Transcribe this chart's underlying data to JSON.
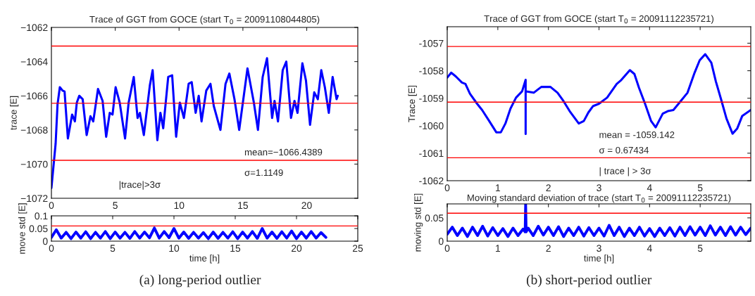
{
  "chart_data": [
    {
      "type": "line",
      "title": "Trace of GGT from GOCE (start T$_{0}$ = 20091108044805)",
      "ylabel": "trace [E]",
      "xlim": [
        0,
        24
      ],
      "xticks": [
        0,
        5,
        10,
        15,
        20
      ],
      "ylim": [
        -1072,
        -1062
      ],
      "yticks": [
        {
          "value": -1072,
          "label": "−1072"
        },
        {
          "value": -1070,
          "label": "−1070"
        },
        {
          "value": -1068,
          "label": "−1068"
        },
        {
          "value": -1066,
          "label": "−1066"
        },
        {
          "value": -1064,
          "label": "−1064"
        },
        {
          "value": -1062,
          "label": "−1062"
        }
      ],
      "grid": false,
      "legend": false,
      "series": [
        {
          "color": "#0000ff",
          "x": [
            0,
            0.33,
            0.48,
            0.66,
            0.88,
            1.03,
            1.29,
            1.62,
            1.84,
            1.99,
            2.18,
            2.45,
            2.76,
            3.06,
            3.28,
            3.65,
            4.01,
            4.29,
            4.57,
            4.79,
            5.03,
            5.35,
            5.77,
            6.05,
            6.45,
            6.75,
            6.93,
            7.24,
            7.71,
            7.93,
            8.3,
            8.54,
            8.76,
            9.15,
            9.46,
            9.77,
            10.06,
            10.38,
            10.75,
            10.99,
            11.3,
            11.54,
            11.76,
            12.13,
            12.46,
            12.72,
            13.24,
            13.64,
            13.94,
            14.34,
            14.71,
            15.36,
            15.86,
            16.18,
            16.55,
            16.89,
            17.29,
            17.48,
            17.75,
            18.12,
            18.4,
            18.77,
            19.04,
            19.28,
            19.66,
            19.94,
            20.26,
            20.59,
            20.87,
            21.14,
            21.42,
            21.73,
            22.03,
            22.34,
            22.43
          ],
          "values": [
            -1071.4,
            -1068.8,
            -1066.5,
            -1065.5,
            -1065.7,
            -1065.75,
            -1068.5,
            -1067.1,
            -1067.5,
            -1066.4,
            -1066.0,
            -1066.2,
            -1068.3,
            -1067.2,
            -1067.5,
            -1065.6,
            -1066.3,
            -1068.4,
            -1067.0,
            -1067.1,
            -1065.5,
            -1066.4,
            -1068.5,
            -1066.4,
            -1064.9,
            -1067.3,
            -1067.0,
            -1068.3,
            -1065.4,
            -1064.5,
            -1068.6,
            -1067.0,
            -1067.9,
            -1064.9,
            -1064.8,
            -1068.4,
            -1066.4,
            -1067.3,
            -1065.3,
            -1065.2,
            -1067.0,
            -1066.0,
            -1067.5,
            -1065.7,
            -1065.3,
            -1066.6,
            -1068.0,
            -1065.3,
            -1064.7,
            -1066.2,
            -1068.0,
            -1064.4,
            -1066.4,
            -1068.0,
            -1064.9,
            -1063.8,
            -1067.3,
            -1066.3,
            -1067.5,
            -1064.5,
            -1064.0,
            -1067.3,
            -1066.3,
            -1067.0,
            -1064.1,
            -1065.1,
            -1067.7,
            -1065.8,
            -1066.2,
            -1064.5,
            -1065.5,
            -1067.0,
            -1064.9,
            -1066.2,
            -1066.0
          ]
        }
      ],
      "ref_lines": [
        {
          "axis": "y",
          "value": -1063.09,
          "color": "#ff0000"
        },
        {
          "axis": "y",
          "value": -1066.4389,
          "color": "#ff0000"
        },
        {
          "axis": "y",
          "value": -1069.78,
          "color": "#ff0000"
        }
      ],
      "annotations": [
        "mean=−1066.4389",
        "σ=1.1149",
        "|trace|>3σ"
      ]
    },
    {
      "type": "line",
      "xlabel": "time [h]",
      "ylabel": "move std [E]",
      "xlim": [
        0,
        25
      ],
      "xticks": [
        0,
        5,
        10,
        15,
        20,
        25
      ],
      "ylim": [
        0,
        0.1
      ],
      "yticks": [
        0,
        0.05,
        0.1
      ],
      "grid": false,
      "legend": false,
      "series": [
        {
          "color": "#0000ff",
          "x": [
            0,
            0.4,
            0.8,
            1.2,
            1.6,
            2.0,
            2.4,
            2.8,
            3.2,
            3.6,
            4.0,
            4.4,
            4.8,
            5.2,
            5.6,
            6.0,
            6.4,
            6.8,
            7.2,
            7.6,
            8.0,
            8.4,
            8.8,
            9.2,
            9.6,
            10.0,
            10.4,
            10.8,
            11.2,
            11.6,
            12.0,
            12.4,
            12.8,
            13.2,
            13.6,
            14.0,
            14.4,
            14.8,
            15.2,
            15.6,
            16.0,
            16.4,
            16.8,
            17.2,
            17.6,
            18.0,
            18.4,
            18.8,
            19.2,
            19.6,
            20.0,
            20.4,
            20.8,
            21.2,
            21.6,
            22.0,
            22.4
          ],
          "values": [
            0.015,
            0.045,
            0.012,
            0.035,
            0.01,
            0.036,
            0.012,
            0.037,
            0.01,
            0.035,
            0.012,
            0.038,
            0.01,
            0.036,
            0.012,
            0.035,
            0.011,
            0.038,
            0.012,
            0.036,
            0.013,
            0.052,
            0.012,
            0.038,
            0.014,
            0.05,
            0.012,
            0.036,
            0.011,
            0.035,
            0.012,
            0.034,
            0.01,
            0.036,
            0.011,
            0.035,
            0.012,
            0.037,
            0.01,
            0.036,
            0.012,
            0.038,
            0.011,
            0.05,
            0.012,
            0.036,
            0.011,
            0.037,
            0.012,
            0.04,
            0.01,
            0.036,
            0.012,
            0.038,
            0.012,
            0.034,
            0.015
          ]
        }
      ],
      "ref_lines": [
        {
          "axis": "y",
          "value": 0.06,
          "color": "#ff0000"
        }
      ],
      "annotations": [
        "(a) long-period outlier"
      ]
    },
    {
      "type": "line",
      "title": "Trace of GGT from GOCE (start T$_{0}$ = 20091112235721)",
      "ylabel": "Trace [E]",
      "xlim": [
        0,
        6
      ],
      "xticks": [
        0,
        1,
        2,
        3,
        4,
        5
      ],
      "ylim": [
        -1062,
        -1056.4
      ],
      "yticks": [
        {
          "value": -1062,
          "label": "-1062"
        },
        {
          "value": -1061,
          "label": "-1061"
        },
        {
          "value": -1060,
          "label": "-1060"
        },
        {
          "value": -1059,
          "label": "-1059"
        },
        {
          "value": -1058,
          "label": "-1058"
        },
        {
          "value": -1057,
          "label": "-1057"
        }
      ],
      "grid": false,
      "legend": false,
      "series": [
        {
          "color": "#0000ff",
          "x": [
            0,
            0.08,
            0.17,
            0.29,
            0.36,
            0.45,
            0.59,
            0.69,
            0.83,
            0.97,
            1.06,
            1.15,
            1.25,
            1.36,
            1.48,
            1.55,
            1.55,
            1.55,
            1.56,
            1.71,
            1.86,
            2.04,
            2.18,
            2.3,
            2.42,
            2.6,
            2.7,
            2.79,
            2.88,
            3.0,
            3.16,
            3.35,
            3.44,
            3.61,
            3.7,
            3.79,
            3.91,
            4.03,
            4.12,
            4.26,
            4.36,
            4.47,
            4.59,
            4.75,
            4.89,
            4.99,
            5.1,
            5.22,
            5.31,
            5.41,
            5.52,
            5.64,
            5.73,
            5.83,
            6.0
          ],
          "values": [
            -1058.25,
            -1058.07,
            -1058.21,
            -1058.43,
            -1058.48,
            -1058.84,
            -1059.2,
            -1059.43,
            -1059.83,
            -1060.24,
            -1060.24,
            -1059.92,
            -1059.38,
            -1058.98,
            -1058.75,
            -1058.33,
            -1060.3,
            -1058.73,
            -1058.75,
            -1058.8,
            -1058.59,
            -1058.59,
            -1058.8,
            -1059.11,
            -1059.47,
            -1059.92,
            -1059.83,
            -1059.52,
            -1059.29,
            -1059.2,
            -1058.98,
            -1058.48,
            -1058.34,
            -1057.98,
            -1058.12,
            -1058.62,
            -1059.2,
            -1059.83,
            -1060.06,
            -1059.56,
            -1059.47,
            -1059.43,
            -1059.16,
            -1058.8,
            -1058.07,
            -1057.62,
            -1057.4,
            -1057.71,
            -1058.39,
            -1059.02,
            -1059.74,
            -1060.29,
            -1060.11,
            -1059.65,
            -1059.43
          ]
        }
      ],
      "ref_lines": [
        {
          "axis": "y",
          "value": -1057.12,
          "color": "#ff0000"
        },
        {
          "axis": "y",
          "value": -1059.142,
          "color": "#ff0000"
        },
        {
          "axis": "y",
          "value": -1061.165,
          "color": "#ff0000"
        }
      ],
      "annotations": [
        "mean = -1059.142",
        "σ = 0.67434",
        "| trace | > 3σ"
      ]
    },
    {
      "type": "line",
      "title": "Moving standard deviation of trace (start T$_{0}$ = 20091112235721)",
      "xlabel": "time [h]",
      "ylabel": "moving std [E]",
      "xlim": [
        0,
        6
      ],
      "xticks": [
        0,
        1,
        2,
        3,
        4,
        5
      ],
      "ylim": [
        0,
        0.08
      ],
      "yticks": [
        0,
        0.05
      ],
      "grid": false,
      "legend": false,
      "series": [
        {
          "color": "#0000ff",
          "x": [
            0,
            0.1,
            0.2,
            0.3,
            0.4,
            0.5,
            0.6,
            0.7,
            0.8,
            0.9,
            1.0,
            1.1,
            1.2,
            1.3,
            1.4,
            1.5,
            1.54,
            1.55,
            1.56,
            1.6,
            1.7,
            1.8,
            1.9,
            2.0,
            2.1,
            2.2,
            2.3,
            2.4,
            2.5,
            2.6,
            2.7,
            2.8,
            2.9,
            3.0,
            3.1,
            3.2,
            3.3,
            3.4,
            3.5,
            3.6,
            3.7,
            3.8,
            3.9,
            4.0,
            4.1,
            4.2,
            4.3,
            4.4,
            4.5,
            4.6,
            4.7,
            4.8,
            4.9,
            5.0,
            5.1,
            5.2,
            5.3,
            5.4,
            5.5,
            5.6,
            5.7,
            5.8,
            5.9,
            6.0
          ],
          "values": [
            0.015,
            0.03,
            0.012,
            0.028,
            0.01,
            0.03,
            0.012,
            0.032,
            0.011,
            0.029,
            0.012,
            0.027,
            0.01,
            0.028,
            0.012,
            0.026,
            0.02,
            0.08,
            0.02,
            0.028,
            0.012,
            0.032,
            0.013,
            0.03,
            0.012,
            0.031,
            0.01,
            0.028,
            0.012,
            0.03,
            0.011,
            0.029,
            0.012,
            0.028,
            0.011,
            0.034,
            0.012,
            0.03,
            0.01,
            0.028,
            0.012,
            0.03,
            0.011,
            0.027,
            0.01,
            0.028,
            0.012,
            0.029,
            0.011,
            0.03,
            0.012,
            0.031,
            0.013,
            0.03,
            0.012,
            0.033,
            0.013,
            0.03,
            0.012,
            0.031,
            0.013,
            0.03,
            0.014,
            0.028
          ]
        }
      ],
      "ref_lines": [
        {
          "axis": "y",
          "value": 0.06,
          "color": "#ff0000"
        }
      ],
      "annotations": [
        "(b) short-period outlier"
      ]
    }
  ]
}
